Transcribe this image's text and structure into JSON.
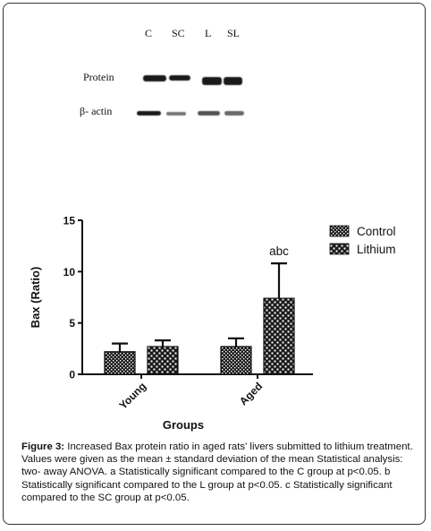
{
  "blot": {
    "lanes": [
      "C",
      "SC",
      "L",
      "SL"
    ],
    "rows": [
      "Protein",
      "β- actin"
    ],
    "protein_intensity": [
      0.95,
      0.9,
      1.0,
      0.95
    ],
    "actin_intensity": [
      0.9,
      0.55,
      0.7,
      0.6
    ]
  },
  "chart_data": {
    "type": "bar",
    "title": "",
    "xlabel": "Groups",
    "ylabel": "Bax  (Ratio)",
    "categories": [
      "Young",
      "Aged"
    ],
    "ylim": [
      0,
      15
    ],
    "yticks": [
      0,
      5,
      10,
      15
    ],
    "legend": {
      "placement": "top-right"
    },
    "series": [
      {
        "name": "Control",
        "values": [
          2.2,
          2.7
        ],
        "errors": [
          0.8,
          0.8
        ],
        "pattern": "fine-dots"
      },
      {
        "name": "Lithium",
        "values": [
          2.7,
          7.4
        ],
        "errors": [
          0.6,
          3.4
        ],
        "pattern": "coarse-checks"
      }
    ],
    "annotations": [
      {
        "category": "Aged",
        "series": "Lithium",
        "text": "abc"
      }
    ]
  },
  "caption": {
    "label": "Figure 3:",
    "text": " Increased Bax protein ratio in aged rats' livers submitted to lithium treatment.  Values were given as the mean ± standard deviation of the mean Statistical analysis: two- away ANOVA. a Statistically significant  compared to the C group at p<0.05. b Statistically significant compared to the L group at p<0.05. c Statistically significant compared to the SC group at p<0.05."
  },
  "colors": {
    "bar_dark": "#1a1a1a",
    "bar_light": "#ffffff",
    "axis": "#111111"
  }
}
